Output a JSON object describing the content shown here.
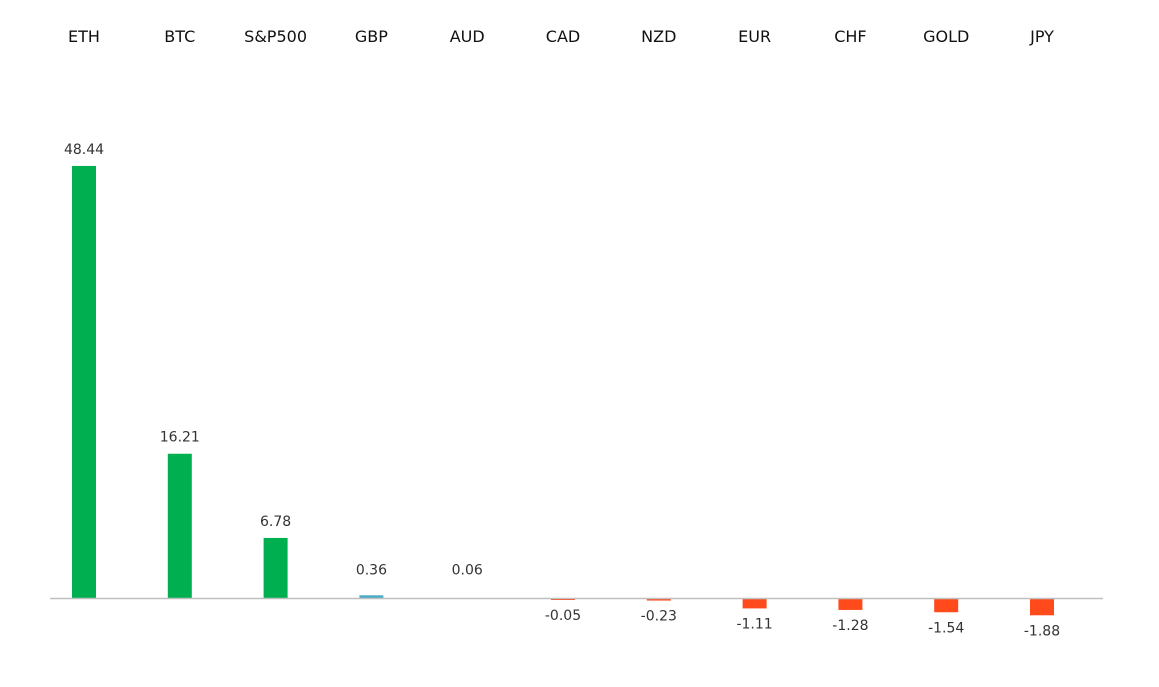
{
  "chart_data": {
    "type": "bar",
    "categories": [
      "ETH",
      "BTC",
      "S&P500",
      "GBP",
      "AUD",
      "CAD",
      "NZD",
      "EUR",
      "CHF",
      "GOLD",
      "JPY"
    ],
    "values": [
      48.44,
      16.21,
      6.78,
      0.36,
      0.06,
      -0.05,
      -0.23,
      -1.11,
      -1.28,
      -1.54,
      -1.88
    ],
    "value_labels": [
      "48.44",
      "16.21",
      "6.78",
      "0.36",
      "0.06",
      "-0.05",
      "-0.23",
      "-1.11",
      "-1.28",
      "-1.54",
      "-1.88"
    ],
    "title": "",
    "xlabel": "",
    "ylabel": "",
    "ylim": [
      -2,
      50
    ],
    "grid": false,
    "legend": "none",
    "category_label_position": "top",
    "colors": {
      "positive": "#00B050",
      "small_positive": "#4BACC6",
      "negative": "#FF4A1C",
      "axis": "#BFBFBF"
    }
  }
}
